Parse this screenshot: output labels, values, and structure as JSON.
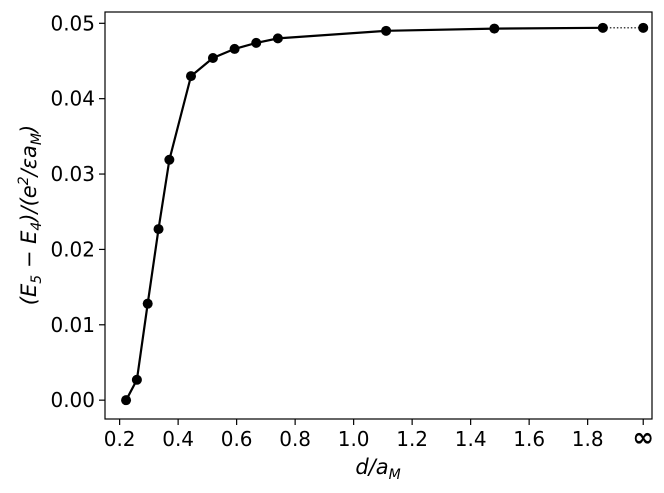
{
  "chart_data": {
    "type": "line",
    "title": "",
    "xlabel": "d/a_M",
    "ylabel": "(E_5 − E_4)/(e^2/εa_M)",
    "xlim": [
      0.15,
      2.02
    ],
    "ylim": [
      -0.0025,
      0.0515
    ],
    "x_ticks": [
      0.2,
      0.4,
      0.6,
      0.8,
      1.0,
      1.2,
      1.4,
      1.6,
      1.8
    ],
    "x_tick_labels": [
      "0.2",
      "0.4",
      "0.6",
      "0.8",
      "1.0",
      "1.2",
      "1.4",
      "1.6",
      "1.8"
    ],
    "extra_x_tick": {
      "label": "∞",
      "x": 1.99
    },
    "y_ticks": [
      0.0,
      0.01,
      0.02,
      0.03,
      0.04,
      0.05
    ],
    "y_tick_labels": [
      "0.00",
      "0.01",
      "0.02",
      "0.03",
      "0.04",
      "0.05"
    ],
    "grid": false,
    "series": [
      {
        "color": "#000000",
        "marker": "circle",
        "linestyle": "solid",
        "x": [
          0.222,
          0.259,
          0.296,
          0.333,
          0.37,
          0.444,
          0.519,
          0.593,
          0.667,
          0.741,
          1.111,
          1.481,
          1.852
        ],
        "y": [
          0.0,
          0.0027,
          0.0128,
          0.0227,
          0.0319,
          0.043,
          0.0454,
          0.0466,
          0.0474,
          0.048,
          0.049,
          0.0493,
          0.0494
        ]
      }
    ],
    "infinity_point": {
      "x": 1.99,
      "y": 0.0494,
      "connector": "dotted"
    }
  }
}
